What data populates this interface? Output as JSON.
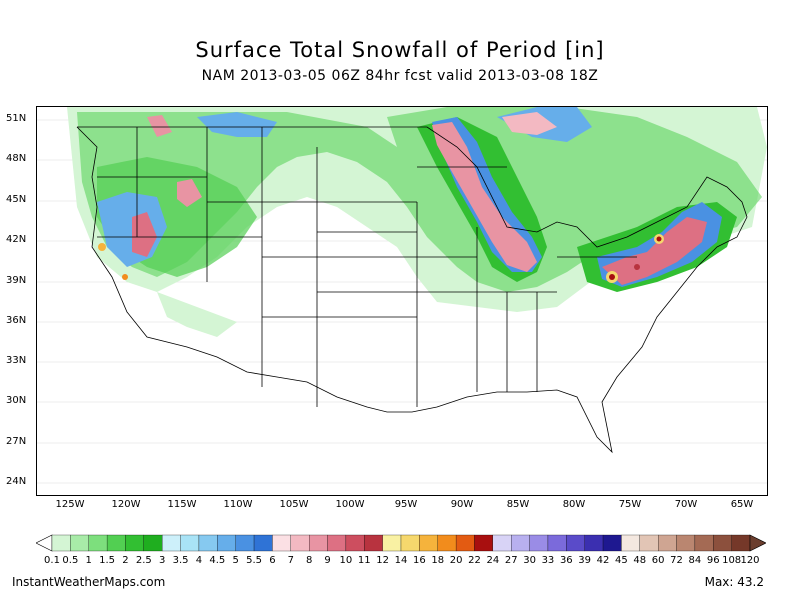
{
  "title": "Surface Total Snowfall of Period [in]",
  "subtitle": "NAM 2013-03-05 06Z 84hr fcst valid 2013-03-08 18Z",
  "lat_labels": [
    "51N",
    "48N",
    "45N",
    "42N",
    "39N",
    "36N",
    "33N",
    "30N",
    "27N",
    "24N"
  ],
  "lon_labels": [
    "125W",
    "120W",
    "115W",
    "110W",
    "105W",
    "100W",
    "95W",
    "90W",
    "85W",
    "80W",
    "75W",
    "70W",
    "65W"
  ],
  "legend": {
    "labels": [
      "0.1",
      "0.5",
      "1",
      "1.5",
      "2",
      "2.5",
      "3",
      "3.5",
      "4",
      "4.5",
      "5",
      "5.5",
      "6",
      "7",
      "8",
      "9",
      "10",
      "11",
      "12",
      "14",
      "16",
      "18",
      "20",
      "22",
      "24",
      "27",
      "30",
      "33",
      "36",
      "39",
      "42",
      "45",
      "48",
      "60",
      "72",
      "84",
      "96",
      "108",
      "120"
    ],
    "colors": [
      "#d4f5d4",
      "#a8eba8",
      "#7ddf7d",
      "#52cf52",
      "#32bf32",
      "#1fae1f",
      "#cdf0fa",
      "#a9e3f6",
      "#86c9f0",
      "#66aeea",
      "#4a91e2",
      "#2f73d6",
      "#fbe0e4",
      "#f3b9c2",
      "#e894a3",
      "#dd7083",
      "#cd4e5f",
      "#b8333f",
      "#f9f1a3",
      "#f6d86d",
      "#f5b33c",
      "#f28c1c",
      "#e35b12",
      "#a80f0f",
      "#d8d3f6",
      "#b8b0ef",
      "#9a8ce6",
      "#7b6adb",
      "#5a4bc9",
      "#3b2fb0",
      "#1e1890",
      "#f4e8e0",
      "#e2c5b5",
      "#cfa592",
      "#ba8670",
      "#a46a54",
      "#8c503d",
      "#753829"
    ]
  },
  "footer": {
    "source": "InstantWeatherMaps.com",
    "max_label": "Max:",
    "max_value": "43.2"
  }
}
